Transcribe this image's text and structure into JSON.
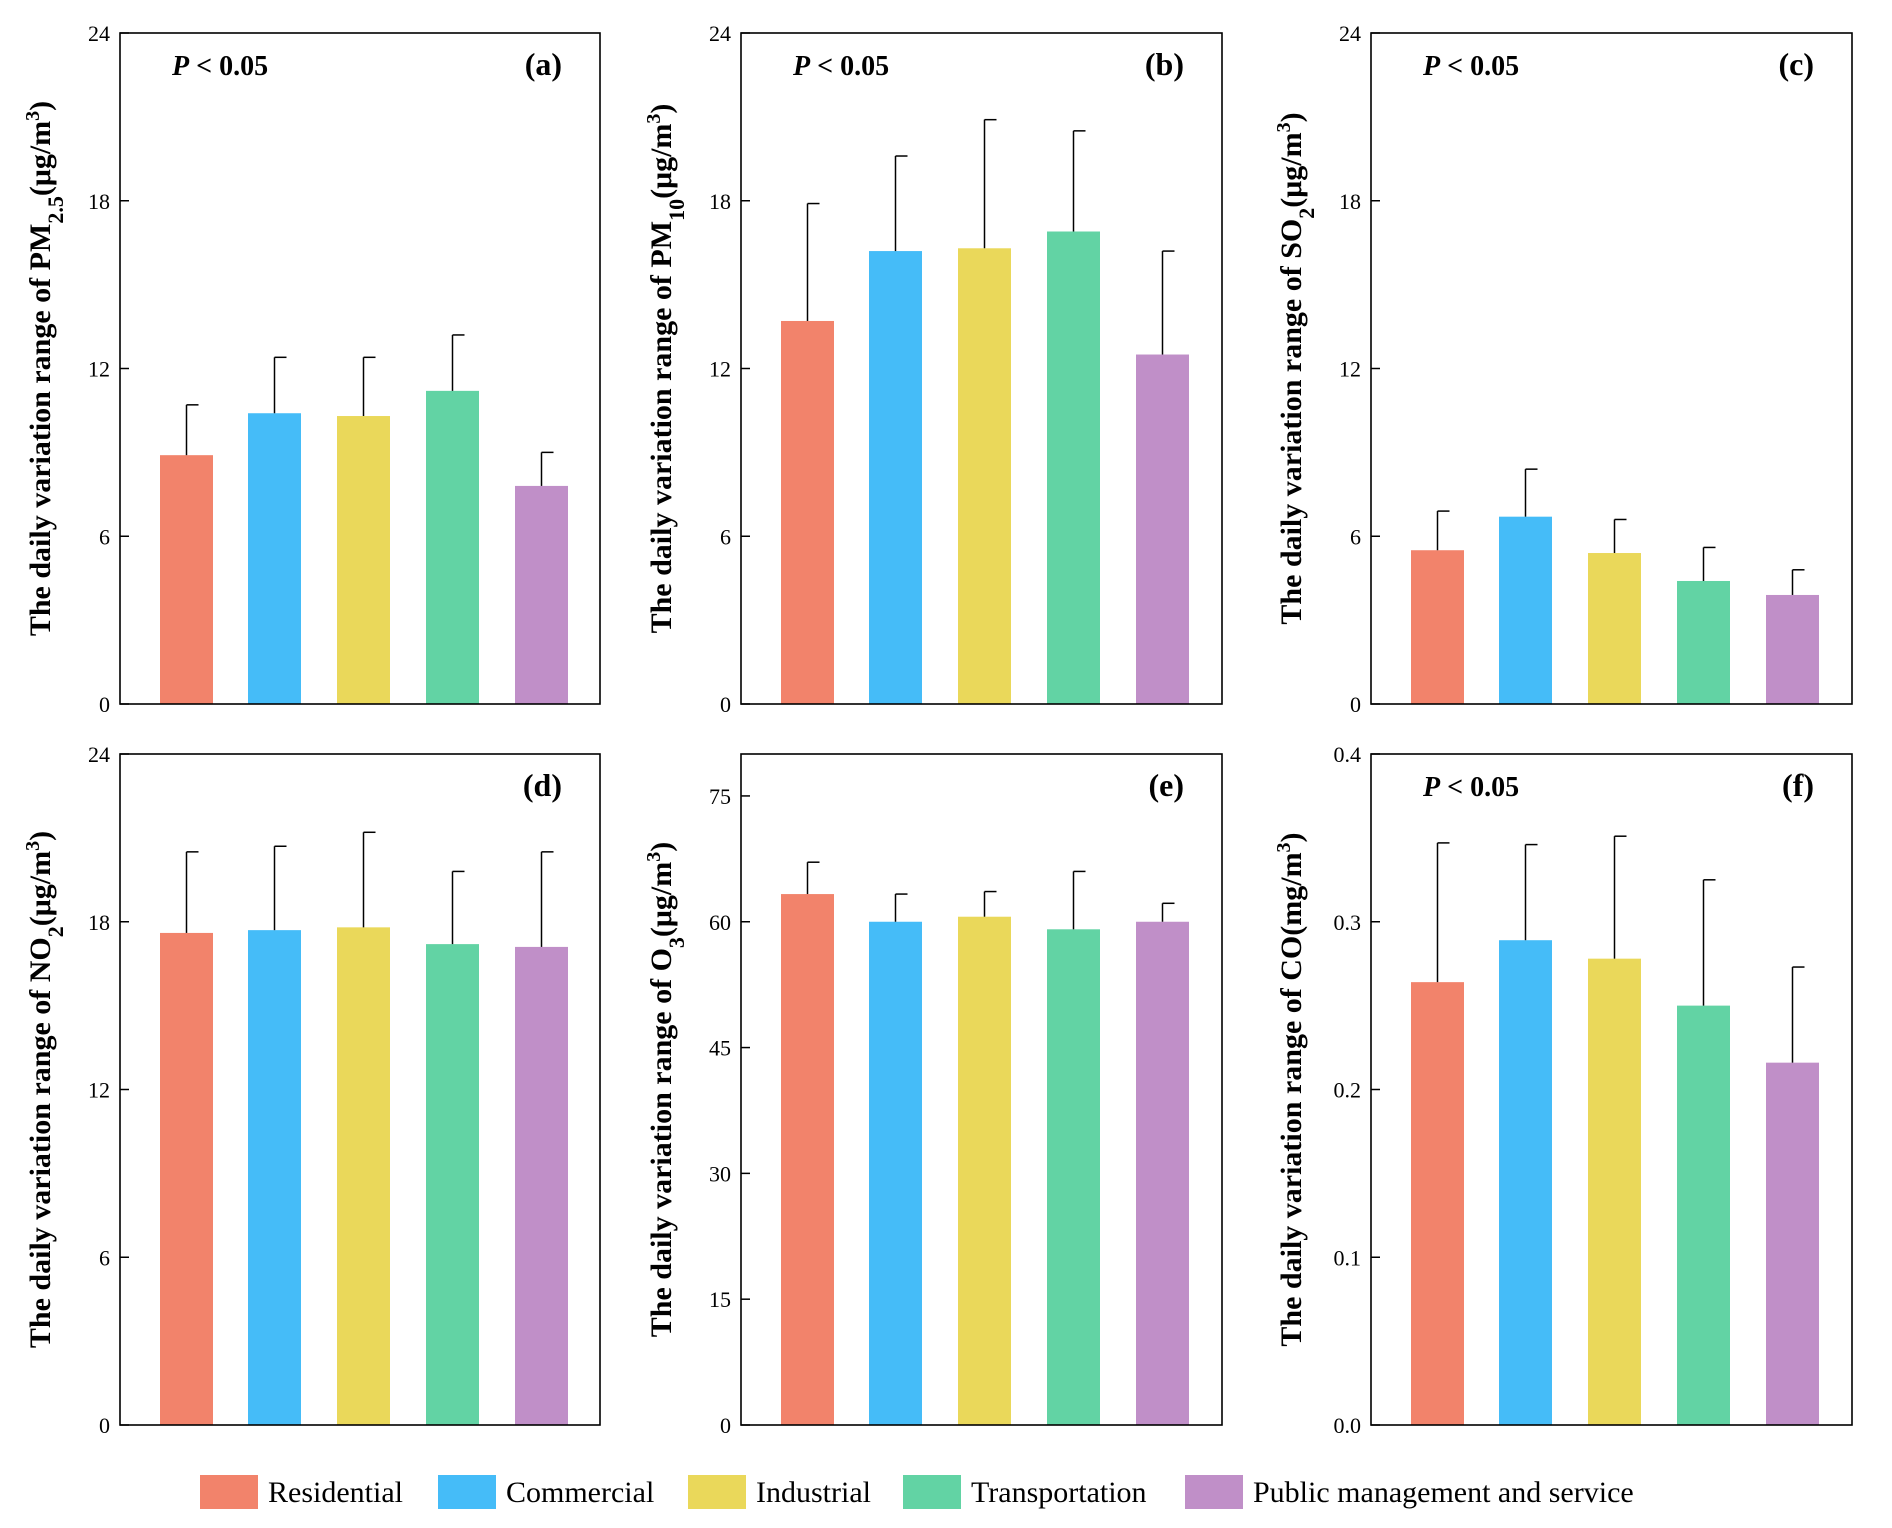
{
  "colors": {
    "Residential": "#f2836b",
    "Commercial": "#45bcf8",
    "Industrial": "#ead85a",
    "Transportation": "#62d3a4",
    "Public management and service": "#c08fc8"
  },
  "legend": [
    "Residential",
    "Commercial",
    "Industrial",
    "Transportation",
    "Public management and service"
  ],
  "chart_data": [
    {
      "panel": "(a)",
      "type": "bar",
      "p_value": "P < 0.05",
      "ylabel_main": "The daily variation range of PM",
      "ylabel_sub": "2.5",
      "ylabel_unit": "(μg/m",
      "ylabel_sup": "3",
      "ylabel_close": ")",
      "ylim": [
        0,
        24
      ],
      "yticks": [
        "0",
        "6",
        "12",
        "18",
        "24"
      ],
      "categories": [
        "Residential",
        "Commercial",
        "Industrial",
        "Transportation",
        "Public management and service"
      ],
      "values": [
        8.9,
        10.4,
        10.3,
        11.2,
        7.8
      ],
      "errors": [
        1.8,
        2.0,
        2.1,
        2.0,
        1.2
      ]
    },
    {
      "panel": "(b)",
      "type": "bar",
      "p_value": "P < 0.05",
      "ylabel_main": "The daily variation range of PM",
      "ylabel_sub": "10",
      "ylabel_unit": "(μg/m",
      "ylabel_sup": "3",
      "ylabel_close": ")",
      "ylim": [
        0,
        24
      ],
      "yticks": [
        "0",
        "6",
        "12",
        "18",
        "24"
      ],
      "categories": [
        "Residential",
        "Commercial",
        "Industrial",
        "Transportation",
        "Public management and service"
      ],
      "values": [
        13.7,
        16.2,
        16.3,
        16.9,
        12.5
      ],
      "errors": [
        4.2,
        3.4,
        4.6,
        3.6,
        3.7
      ]
    },
    {
      "panel": "(c)",
      "type": "bar",
      "p_value": "P < 0.05",
      "ylabel_main": "The daily variation range of SO",
      "ylabel_sub": "2",
      "ylabel_unit": "(μg/m",
      "ylabel_sup": "3",
      "ylabel_close": ")",
      "ylim": [
        0,
        24
      ],
      "yticks": [
        "0",
        "6",
        "12",
        "18",
        "24"
      ],
      "categories": [
        "Residential",
        "Commercial",
        "Industrial",
        "Transportation",
        "Public management and service"
      ],
      "values": [
        5.5,
        6.7,
        5.4,
        4.4,
        3.9
      ],
      "errors": [
        1.4,
        1.7,
        1.2,
        1.2,
        0.9
      ]
    },
    {
      "panel": "(d)",
      "type": "bar",
      "p_value": "",
      "ylabel_main": "The daily variation range of NO",
      "ylabel_sub": "2",
      "ylabel_unit": "(μg/m",
      "ylabel_sup": "3",
      "ylabel_close": ")",
      "ylim": [
        0,
        24
      ],
      "yticks": [
        "0",
        "6",
        "12",
        "18",
        "24"
      ],
      "categories": [
        "Residential",
        "Commercial",
        "Industrial",
        "Transportation",
        "Public management and service"
      ],
      "values": [
        17.6,
        17.7,
        17.8,
        17.2,
        17.1
      ],
      "errors": [
        2.9,
        3.0,
        3.4,
        2.6,
        3.4
      ]
    },
    {
      "panel": "(e)",
      "type": "bar",
      "p_value": "",
      "ylabel_main": "The daily variation range of O",
      "ylabel_sub": "3",
      "ylabel_unit": "(μg/m",
      "ylabel_sup": "3",
      "ylabel_close": ")",
      "ylim": [
        0,
        80
      ],
      "yticks": [
        "0",
        "15",
        "30",
        "45",
        "60",
        "75"
      ],
      "categories": [
        "Residential",
        "Commercial",
        "Industrial",
        "Transportation",
        "Public management and service"
      ],
      "values": [
        63.3,
        60.0,
        60.6,
        59.1,
        60.0
      ],
      "errors": [
        3.8,
        3.3,
        3.0,
        6.9,
        2.2
      ]
    },
    {
      "panel": "(f)",
      "type": "bar",
      "p_value": "P < 0.05",
      "ylabel_main": "The daily variation range of CO(mg/m",
      "ylabel_sub": "",
      "ylabel_unit": "",
      "ylabel_sup": "3",
      "ylabel_close": ")",
      "ylim": [
        0,
        0.4
      ],
      "yticks": [
        "0.0",
        "0.1",
        "0.2",
        "0.3",
        "0.4"
      ],
      "categories": [
        "Residential",
        "Commercial",
        "Industrial",
        "Transportation",
        "Public management and service"
      ],
      "values": [
        0.264,
        0.289,
        0.278,
        0.25,
        0.216
      ],
      "errors": [
        0.083,
        0.057,
        0.073,
        0.075,
        0.057
      ]
    }
  ]
}
